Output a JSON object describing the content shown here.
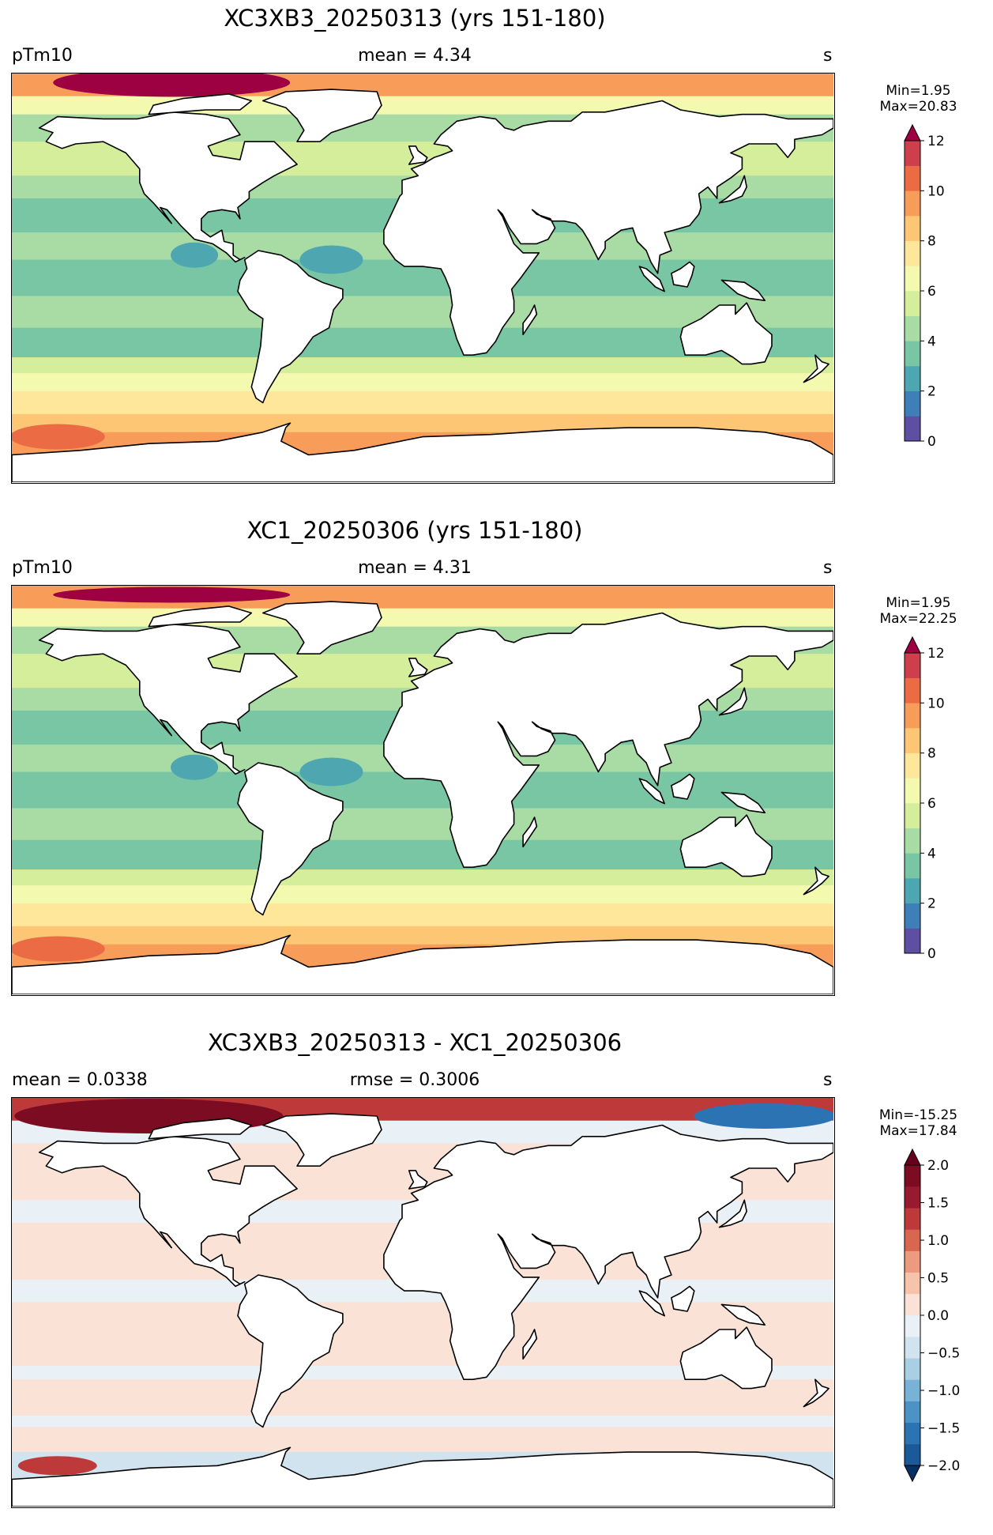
{
  "panels": [
    {
      "title": "XC3XB3_20250313 (yrs 151-180)",
      "left": "pTm10",
      "center": "mean = 4.34",
      "right": "s",
      "min_label": "Min=1.95",
      "max_label": "Max=20.83",
      "variant": "a",
      "colorbar": {
        "ticks": [
          "0",
          "2",
          "4",
          "6",
          "8",
          "10",
          "12"
        ],
        "colors": [
          "#5e4fa2",
          "#3f7fb8",
          "#4da6b0",
          "#78c6a4",
          "#a9dba4",
          "#d5ee9b",
          "#f4f9b0",
          "#fee79a",
          "#fdc674",
          "#f89d59",
          "#eb6b45",
          "#cd3f4d"
        ],
        "extend_top": "#9e0142",
        "extend_bottom": ""
      }
    },
    {
      "title": "XC1_20250306 (yrs 151-180)",
      "left": "pTm10",
      "center": "mean = 4.31",
      "right": "s",
      "min_label": "Min=1.95",
      "max_label": "Max=22.25",
      "variant": "b",
      "colorbar": {
        "ticks": [
          "0",
          "2",
          "4",
          "6",
          "8",
          "10",
          "12"
        ],
        "colors": [
          "#5e4fa2",
          "#3f7fb8",
          "#4da6b0",
          "#78c6a4",
          "#a9dba4",
          "#d5ee9b",
          "#f4f9b0",
          "#fee79a",
          "#fdc674",
          "#f89d59",
          "#eb6b45",
          "#cd3f4d"
        ],
        "extend_top": "#9e0142",
        "extend_bottom": ""
      }
    },
    {
      "title": "XC3XB3_20250313 - XC1_20250306",
      "left": "mean = 0.0338",
      "center": "rmse = 0.3006",
      "right": "s",
      "min_label": "Min=-15.25",
      "max_label": "Max=17.84",
      "variant": "diff",
      "colorbar": {
        "ticks": [
          "−2.0",
          "−1.5",
          "−1.0",
          "−0.5",
          "0.0",
          "0.5",
          "1.0",
          "1.5",
          "2.0"
        ],
        "colors": [
          "#1a5a98",
          "#2c73b3",
          "#4b93c4",
          "#78b2d6",
          "#a9cfe4",
          "#d0e3ef",
          "#e9f0f6",
          "#fae2d6",
          "#f7c4ab",
          "#ec9b7f",
          "#d9664f",
          "#be3a3a",
          "#971a2f",
          "#7b0c22"
        ],
        "extend_top": "#67001f",
        "extend_bottom": "#053061"
      }
    }
  ],
  "chart_data": [
    {
      "type": "heatmap",
      "title": "XC3XB3_20250313 (yrs 151-180)",
      "variable": "pTm10",
      "units": "s",
      "mean": 4.34,
      "min": 1.95,
      "max": 20.83,
      "colorbar_range": [
        0,
        12
      ],
      "colorbar_step": 1,
      "colorbar_ticks": [
        0,
        2,
        4,
        6,
        8,
        10,
        12
      ],
      "extend": "max"
    },
    {
      "type": "heatmap",
      "title": "XC1_20250306 (yrs 151-180)",
      "variable": "pTm10",
      "units": "s",
      "mean": 4.31,
      "min": 1.95,
      "max": 22.25,
      "colorbar_range": [
        0,
        12
      ],
      "colorbar_step": 1,
      "colorbar_ticks": [
        0,
        2,
        4,
        6,
        8,
        10,
        12
      ],
      "extend": "max"
    },
    {
      "type": "heatmap",
      "title": "XC3XB3_20250313 - XC1_20250306",
      "units": "s",
      "mean": 0.0338,
      "rmse": 0.3006,
      "min": -15.25,
      "max": 17.84,
      "colorbar_range": [
        -2.0,
        2.0
      ],
      "colorbar_ticks": [
        -2.0,
        -1.5,
        -1.0,
        -0.5,
        0.0,
        0.5,
        1.0,
        1.5,
        2.0
      ],
      "extend": "both"
    }
  ]
}
